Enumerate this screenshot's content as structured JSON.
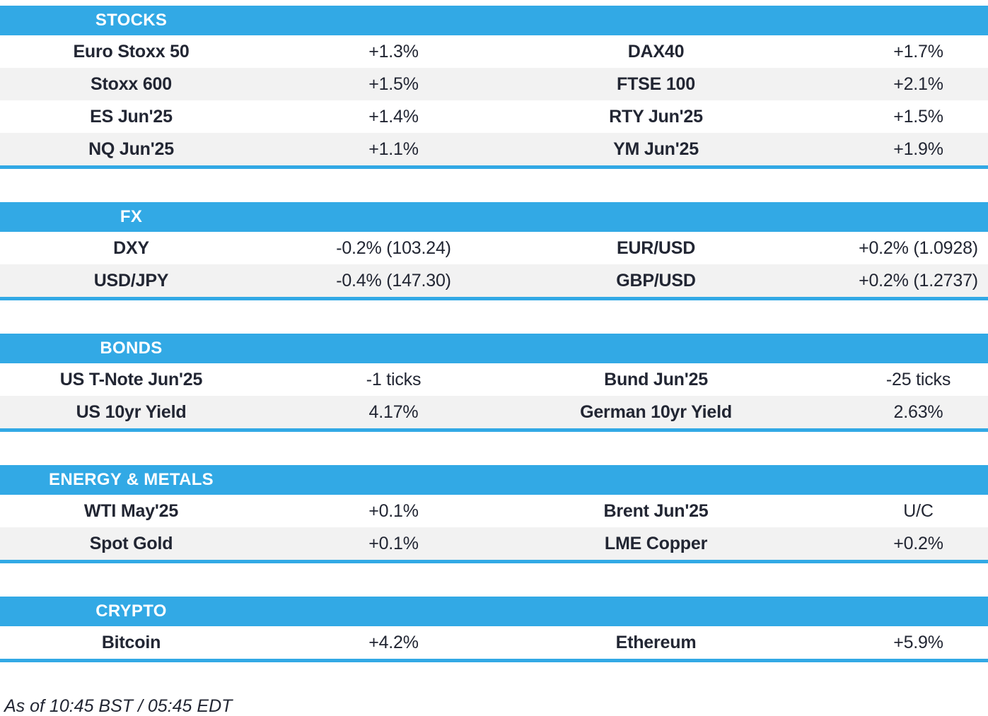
{
  "colors": {
    "accent": "#32a9e5",
    "alt-row": "#f2f2f2",
    "text": "#222633"
  },
  "chart_data": {
    "type": "table",
    "title": "",
    "layout": {
      "columns": 4,
      "cell_alignment": "center",
      "alternating_rows": true
    },
    "sections": [
      {
        "title": "STOCKS",
        "rows": [
          {
            "left_name": "Euro Stoxx 50",
            "left_value": "+1.3%",
            "right_name": "DAX40",
            "right_value": "+1.7%"
          },
          {
            "left_name": "Stoxx 600",
            "left_value": "+1.5%",
            "right_name": "FTSE 100",
            "right_value": "+2.1%"
          },
          {
            "left_name": "ES Jun'25",
            "left_value": "+1.4%",
            "right_name": "RTY Jun'25",
            "right_value": "+1.5%"
          },
          {
            "left_name": "NQ Jun'25",
            "left_value": "+1.1%",
            "right_name": "YM Jun'25",
            "right_value": "+1.9%"
          }
        ]
      },
      {
        "title": "FX",
        "rows": [
          {
            "left_name": "DXY",
            "left_value": "-0.2% (103.24)",
            "right_name": "EUR/USD",
            "right_value": "+0.2% (1.0928)"
          },
          {
            "left_name": "USD/JPY",
            "left_value": "-0.4% (147.30)",
            "right_name": "GBP/USD",
            "right_value": "+0.2% (1.2737)"
          }
        ]
      },
      {
        "title": "BONDS",
        "rows": [
          {
            "left_name": "US T-Note Jun'25",
            "left_value": "-1 ticks",
            "right_name": "Bund Jun'25",
            "right_value": "-25 ticks"
          },
          {
            "left_name": "US 10yr Yield",
            "left_value": "4.17%",
            "right_name": "German 10yr Yield",
            "right_value": "2.63%"
          }
        ]
      },
      {
        "title": "ENERGY & METALS",
        "rows": [
          {
            "left_name": "WTI May'25",
            "left_value": "+0.1%",
            "right_name": "Brent Jun'25",
            "right_value": "U/C"
          },
          {
            "left_name": "Spot Gold",
            "left_value": "+0.1%",
            "right_name": "LME Copper",
            "right_value": "+0.2%"
          }
        ]
      },
      {
        "title": "CRYPTO",
        "rows": [
          {
            "left_name": "Bitcoin",
            "left_value": "+4.2%",
            "right_name": "Ethereum",
            "right_value": "+5.9%"
          }
        ]
      }
    ]
  },
  "footer": {
    "as_of": "As of 10:45 BST / 05:45 EDT"
  }
}
